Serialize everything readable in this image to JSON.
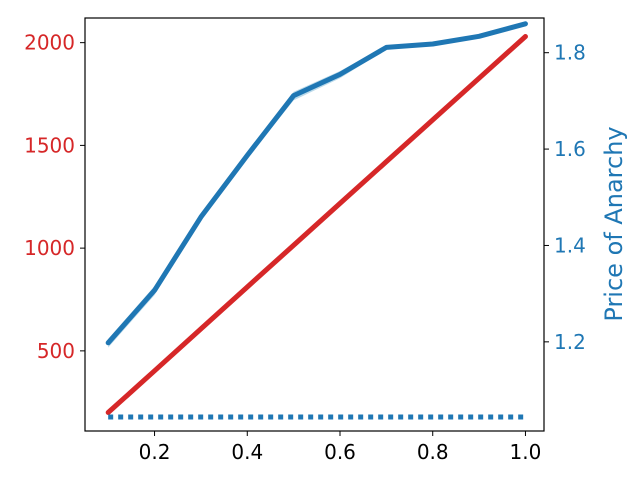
{
  "chart_data": {
    "type": "line",
    "title": "",
    "xlabel": "",
    "ylabel_left": "",
    "ylabel_right": "Price of Anarchy",
    "xlim": [
      0.05,
      1.04
    ],
    "ylim_left": [
      110,
      2120
    ],
    "ylim_right": [
      1.015,
      1.872
    ],
    "x_ticks": [
      0.2,
      0.4,
      0.6,
      0.8,
      1.0
    ],
    "x_tick_labels": [
      "0.2",
      "0.4",
      "0.6",
      "0.8",
      "1.0"
    ],
    "left_ticks": [
      500,
      1000,
      1500,
      2000
    ],
    "left_tick_labels": [
      "500",
      "1000",
      "1500",
      "2000"
    ],
    "right_ticks": [
      1.2,
      1.4,
      1.6,
      1.8
    ],
    "right_tick_labels": [
      "1.2",
      "1.4",
      "1.6",
      "1.8"
    ],
    "grid": false,
    "legend": "none",
    "colors": {
      "left_axis": "#d62728",
      "right_axis": "#1f77b4",
      "band": "#9ecae1"
    },
    "series": [
      {
        "axis": "left",
        "style": "solid",
        "color": "#d62728",
        "x": [
          0.1,
          0.2,
          0.3,
          0.4,
          0.5,
          0.6,
          0.7,
          0.8,
          0.9,
          1.0
        ],
        "y": [
          200,
          403,
          607,
          811,
          1014,
          1218,
          1421,
          1624,
          1827,
          2030
        ]
      },
      {
        "axis": "right",
        "style": "solid",
        "color": "#1f77b4",
        "x": [
          0.1,
          0.2,
          0.3,
          0.4,
          0.5,
          0.6,
          0.7,
          0.8,
          0.9,
          1.0
        ],
        "y": [
          1.198,
          1.307,
          1.459,
          1.587,
          1.711,
          1.755,
          1.811,
          1.818,
          1.834,
          1.86
        ],
        "band_low": [
          1.188,
          1.297,
          1.453,
          1.582,
          1.701,
          1.747,
          1.807,
          1.815,
          1.831,
          1.857
        ],
        "band_high": [
          1.206,
          1.316,
          1.465,
          1.593,
          1.719,
          1.762,
          1.815,
          1.821,
          1.838,
          1.863
        ]
      },
      {
        "axis": "right",
        "style": "dotted",
        "color": "#1f77b4",
        "x": [
          0.1,
          0.2,
          0.3,
          0.4,
          0.5,
          0.6,
          0.7,
          0.8,
          0.9,
          1.0
        ],
        "y": [
          1.044,
          1.044,
          1.044,
          1.044,
          1.044,
          1.044,
          1.044,
          1.044,
          1.044,
          1.044
        ]
      }
    ]
  }
}
